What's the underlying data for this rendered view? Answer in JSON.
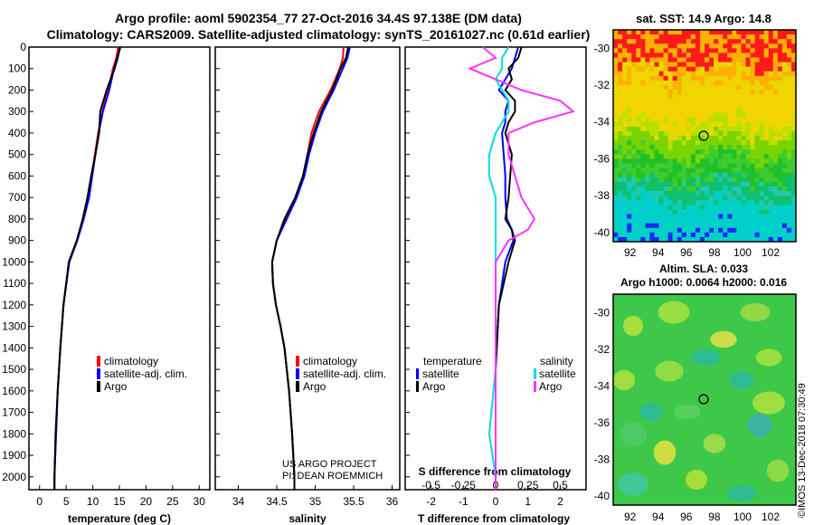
{
  "title_line1": "Argo profile: aoml 5902354_77 27-Oct-2016 34.4S 97.138E (DM data)",
  "title_line2": "Climatology: CARS2009. Satellite-adjusted climatology: synTS_20161027.nc (0.61d earlier)",
  "legend": {
    "climatology": "climatology",
    "satellite_adj": "satellite-adj. clim.",
    "argo": "Argo"
  },
  "diff_legend": {
    "temperature": "temperature",
    "salinity": "salinity",
    "satellite": "satellite",
    "argo": "Argo"
  },
  "credit": {
    "project": "US ARGO PROJECT",
    "pi": "PI: DEAN ROEMMICH"
  },
  "stamp": "©IMOS 13-Dec-2018 07:30:49",
  "colors": {
    "climatology": "#ff0000",
    "satellite": "#0000ff",
    "argo": "#000000",
    "s_satellite": "#00dddd",
    "s_argo": "#ff33ff"
  },
  "chart_data": [
    {
      "type": "line",
      "xlabel": "temperature (deg C)",
      "xlim": [
        -2,
        32
      ],
      "xticks": [
        "0",
        "5",
        "10",
        "15",
        "20",
        "25",
        "30"
      ],
      "yticks": [
        "0",
        "100",
        "200",
        "300",
        "400",
        "500",
        "600",
        "700",
        "800",
        "900",
        "1000",
        "1100",
        "1200",
        "1300",
        "1400",
        "1500",
        "1600",
        "1700",
        "1800",
        "1900",
        "2000"
      ],
      "ylim": [
        2060,
        0
      ],
      "depth": [
        0,
        50,
        100,
        200,
        300,
        400,
        500,
        600,
        700,
        800,
        900,
        1000,
        1200,
        1400,
        1600,
        1800,
        2000,
        2060
      ],
      "series": [
        {
          "name": "climatology",
          "values": [
            14.8,
            14.4,
            13.8,
            12.9,
            11.8,
            11.0,
            10.4,
            9.8,
            9.2,
            8.2,
            7.0,
            5.5,
            4.5,
            3.9,
            3.4,
            3.1,
            2.8,
            2.8
          ]
        },
        {
          "name": "satellite-adj. clim.",
          "values": [
            15.2,
            14.6,
            14.0,
            13.1,
            11.9,
            11.1,
            10.5,
            9.9,
            9.3,
            8.3,
            7.1,
            5.6,
            4.5,
            3.9,
            3.4,
            3.1,
            2.8,
            2.8
          ]
        },
        {
          "name": "Argo",
          "values": [
            15.1,
            14.7,
            14.1,
            12.6,
            11.4,
            11.2,
            10.5,
            9.7,
            9.0,
            8.1,
            7.0,
            5.5,
            4.5,
            3.9,
            3.4,
            3.0,
            2.8,
            2.8
          ]
        }
      ]
    },
    {
      "type": "line",
      "xlabel": "salinity",
      "xlim": [
        33.7,
        36.1
      ],
      "xticks": [
        "34",
        "34.5",
        "35",
        "35.5",
        "36"
      ],
      "depth": [
        0,
        50,
        100,
        200,
        300,
        400,
        500,
        600,
        700,
        800,
        900,
        1000,
        1100,
        1200,
        1300,
        1400,
        1600,
        1800,
        2000,
        2060
      ],
      "series": [
        {
          "name": "climatology",
          "values": [
            35.37,
            35.36,
            35.32,
            35.2,
            35.05,
            34.95,
            34.9,
            34.85,
            34.75,
            34.62,
            34.5,
            34.44,
            34.45,
            34.49,
            34.55,
            34.6,
            34.66,
            34.7,
            34.73,
            34.73
          ]
        },
        {
          "name": "satellite-adj. clim.",
          "values": [
            35.45,
            35.42,
            35.36,
            35.24,
            35.1,
            35.0,
            34.92,
            34.86,
            34.76,
            34.63,
            34.5,
            34.44,
            34.45,
            34.49,
            34.55,
            34.6,
            34.66,
            34.7,
            34.73,
            34.73
          ]
        },
        {
          "name": "Argo",
          "values": [
            35.43,
            35.4,
            35.33,
            35.22,
            35.08,
            34.98,
            34.9,
            34.84,
            34.74,
            34.6,
            34.5,
            34.44,
            34.45,
            34.49,
            34.55,
            34.6,
            34.66,
            34.7,
            34.73,
            34.73
          ]
        }
      ]
    },
    {
      "type": "line",
      "xlabel": "T difference from climatology",
      "top_label": "S difference from climatology",
      "xlim": [
        -2.8,
        2.8
      ],
      "xticks": [
        "-2",
        "-1",
        "0",
        "1",
        "2"
      ],
      "sxticks": [
        "-0.5",
        "-0.25",
        "0",
        "0.25",
        "0.5"
      ],
      "depth": [
        0,
        50,
        100,
        150,
        200,
        250,
        300,
        350,
        400,
        500,
        600,
        700,
        800,
        850,
        900,
        1000,
        1200,
        1500,
        1800,
        2000,
        2060
      ],
      "series": [
        {
          "name": "T satellite",
          "values": [
            0.7,
            0.6,
            0.5,
            0.3,
            0.1,
            0.4,
            0.3,
            0.3,
            0.2,
            0.25,
            0.3,
            0.3,
            0.35,
            0.5,
            0.55,
            0.3,
            0.1,
            0.0,
            0.0,
            0.0,
            0.0
          ]
        },
        {
          "name": "T Argo",
          "values": [
            0.8,
            0.7,
            0.4,
            0.5,
            0.3,
            0.6,
            0.6,
            0.4,
            0.3,
            0.5,
            0.45,
            0.4,
            0.3,
            0.5,
            0.6,
            0.4,
            0.1,
            0.0,
            0.0,
            0.0,
            0.0
          ]
        },
        {
          "name": "S satellite",
          "values": [
            0.1,
            0.05,
            0.05,
            0.0,
            0.05,
            0.1,
            0.1,
            0.05,
            0.0,
            -0.05,
            -0.05,
            0.0,
            0.0,
            0.0,
            0.0,
            0.0,
            0.0,
            0.0,
            -0.05,
            0.0,
            0.0
          ]
        },
        {
          "name": "S Argo",
          "values": [
            -0.1,
            0.0,
            -0.2,
            0.0,
            0.2,
            0.5,
            0.6,
            0.3,
            0.1,
            0.1,
            0.15,
            0.2,
            0.3,
            0.25,
            0.1,
            0.0,
            0.0,
            0.0,
            0.0,
            0.0,
            0.0
          ]
        }
      ]
    }
  ],
  "maps": {
    "sst": {
      "title": "sat. SST: 14.9 Argo: 14.8",
      "lat_ticks": [
        "-30",
        "-32",
        "-34",
        "-36",
        "-38",
        "-40"
      ],
      "lon_ticks": [
        "92",
        "94",
        "96",
        "98",
        "100",
        "102"
      ]
    },
    "sla": {
      "title1": "Altim. SLA: 0.033",
      "title2": "Argo h1000: 0.0064 h2000: 0.016",
      "lat_ticks": [
        "-30",
        "-32",
        "-34",
        "-36",
        "-38",
        "-40"
      ],
      "lon_ticks": [
        "92",
        "94",
        "96",
        "98",
        "100",
        "102"
      ]
    }
  }
}
